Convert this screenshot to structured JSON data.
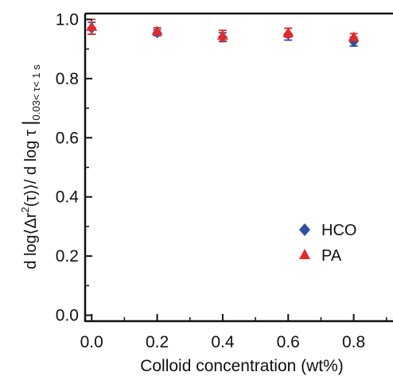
{
  "chart_data": {
    "type": "scatter",
    "xlabel": "Colloid concentration (wt%)",
    "ylabel": {
      "prefix": "d log",
      "langle": "⟨",
      "delta_r": "Δr",
      "exponent": "2",
      "tau_arg": "(τ)",
      "rangle": "⟩",
      "middle": "/ d log τ ",
      "bar": "|",
      "subscript": "0.03< τ< 1 s"
    },
    "xlim": [
      -0.02,
      0.92
    ],
    "ylim": [
      -0.02,
      1.02
    ],
    "xticks": [
      "0.0",
      "0.2",
      "0.4",
      "0.6",
      "0.8"
    ],
    "yticks": [
      "0.0",
      "0.2",
      "0.4",
      "0.6",
      "0.8",
      "1.0"
    ],
    "grid": false,
    "legend_position": "bottom-right",
    "series": [
      {
        "name": "HCO",
        "marker": "diamond",
        "color": "#2e4fa3",
        "x": [
          0.0,
          0.2,
          0.4,
          0.6,
          0.8
        ],
        "y": [
          0.97,
          0.955,
          0.94,
          0.95,
          0.925
        ],
        "err": [
          0.02,
          0.01,
          0.015,
          0.02,
          0.015
        ]
      },
      {
        "name": "PA",
        "marker": "triangle",
        "color": "#e32a2a",
        "x": [
          0.0,
          0.2,
          0.4,
          0.6,
          0.8
        ],
        "y": [
          0.975,
          0.96,
          0.945,
          0.955,
          0.94
        ],
        "err": [
          0.025,
          0.012,
          0.018,
          0.015,
          0.012
        ]
      }
    ]
  }
}
